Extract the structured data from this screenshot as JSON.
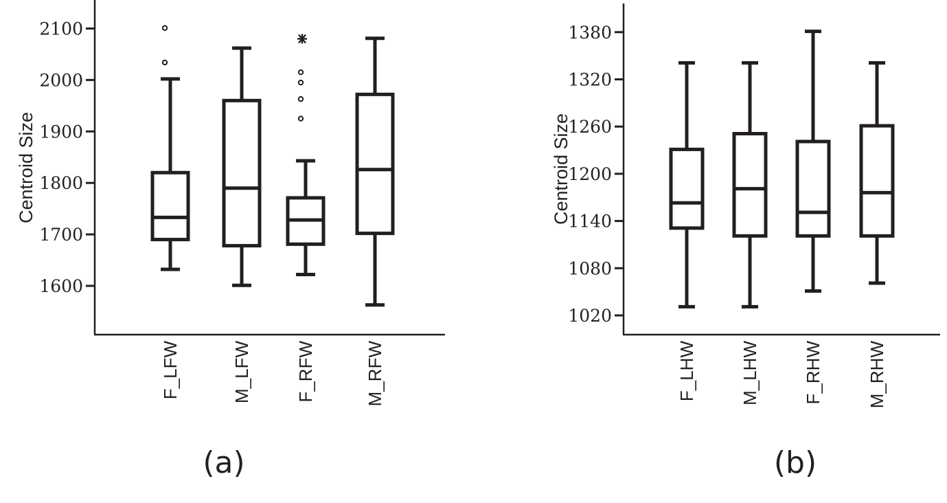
{
  "chart_data": [
    {
      "type": "boxplot",
      "panel_label": "(a)",
      "title": "",
      "xlabel": "",
      "ylabel": "Centroid Size",
      "ylim": [
        1510,
        2150
      ],
      "yticks": [
        1600,
        1700,
        1800,
        1900,
        2000,
        2100
      ],
      "ytick_labels": [
        "1600",
        "1700",
        "1800",
        "1900",
        "2000",
        "2100"
      ],
      "grid": false,
      "categories": [
        "F_LFW",
        "M_LFW",
        "F_RFW",
        "M_RFW"
      ],
      "boxes": [
        {
          "name": "F_LFW",
          "whisker_low": 1632,
          "q1": 1690,
          "median": 1733,
          "q3": 1820,
          "whisker_high": 2002,
          "outliers": [
            2034,
            2101
          ],
          "extremes": []
        },
        {
          "name": "M_LFW",
          "whisker_low": 1601,
          "q1": 1678,
          "median": 1790,
          "q3": 1960,
          "whisker_high": 2062,
          "outliers": [],
          "extremes": []
        },
        {
          "name": "F_RFW",
          "whisker_low": 1622,
          "q1": 1681,
          "median": 1728,
          "q3": 1771,
          "whisker_high": 1843,
          "outliers": [
            1925,
            1963,
            1995,
            2015
          ],
          "extremes": [
            2080
          ]
        },
        {
          "name": "M_RFW",
          "whisker_low": 1563,
          "q1": 1702,
          "median": 1826,
          "q3": 1972,
          "whisker_high": 2081,
          "outliers": [],
          "extremes": []
        }
      ]
    },
    {
      "type": "boxplot",
      "panel_label": "(b)",
      "title": "",
      "xlabel": "",
      "ylabel": "Centroid Size",
      "ylim": [
        1000,
        1415
      ],
      "yticks": [
        1020,
        1080,
        1140,
        1200,
        1260,
        1320,
        1380
      ],
      "ytick_labels": [
        "1020",
        "1080",
        "1140",
        "1200",
        "1260",
        "1320",
        "1380"
      ],
      "grid": false,
      "categories": [
        "F_LHW",
        "M_LHW",
        "F_RHW",
        "M_RHW"
      ],
      "boxes": [
        {
          "name": "F_LHW",
          "whisker_low": 1031,
          "q1": 1131,
          "median": 1163,
          "q3": 1231,
          "whisker_high": 1341,
          "outliers": [],
          "extremes": []
        },
        {
          "name": "M_LHW",
          "whisker_low": 1031,
          "q1": 1121,
          "median": 1181,
          "q3": 1251,
          "whisker_high": 1341,
          "outliers": [],
          "extremes": []
        },
        {
          "name": "F_RHW",
          "whisker_low": 1051,
          "q1": 1121,
          "median": 1151,
          "q3": 1241,
          "whisker_high": 1381,
          "outliers": [],
          "extremes": []
        },
        {
          "name": "M_RHW",
          "whisker_low": 1061,
          "q1": 1121,
          "median": 1176,
          "q3": 1261,
          "whisker_high": 1341,
          "outliers": [],
          "extremes": []
        }
      ]
    }
  ],
  "colors": {
    "ink": "#231f20",
    "background": "#ffffff"
  }
}
